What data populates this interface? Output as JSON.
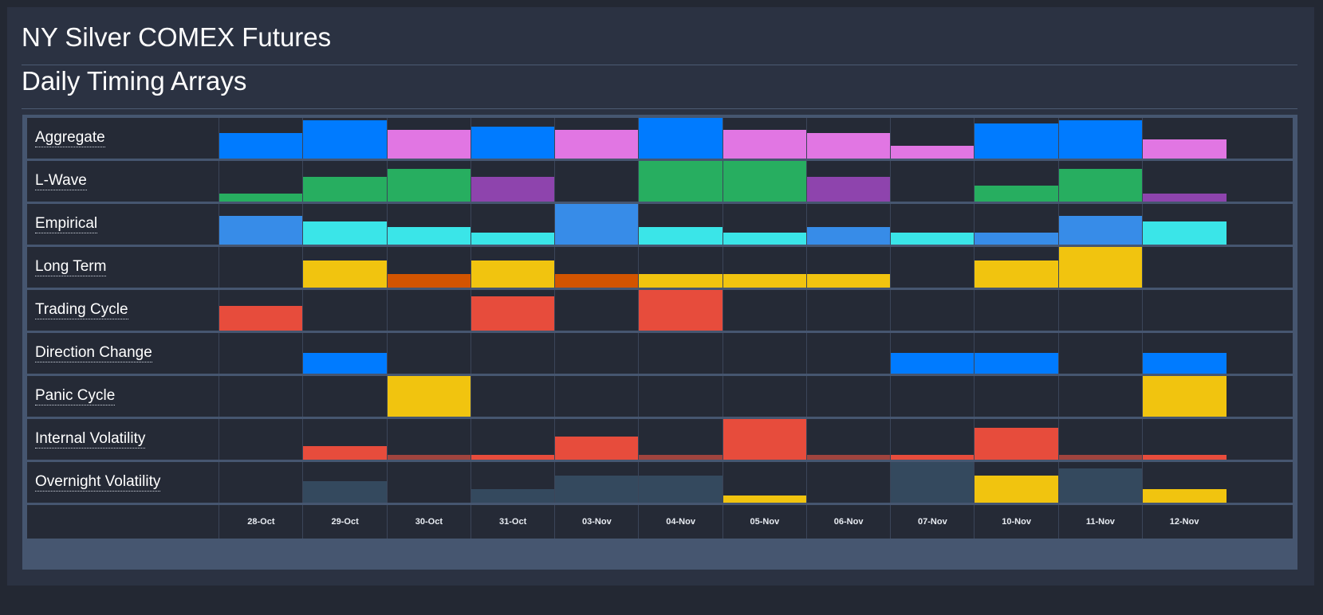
{
  "title": "NY Silver COMEX Futures",
  "subtitle": "Daily Timing Arrays",
  "chart_data": {
    "type": "heatmap",
    "value_scale": "relative bar height, 0 to 1",
    "categories": [
      "28-Oct",
      "29-Oct",
      "30-Oct",
      "31-Oct",
      "03-Nov",
      "04-Nov",
      "05-Nov",
      "06-Nov",
      "07-Nov",
      "10-Nov",
      "11-Nov",
      "12-Nov"
    ],
    "colors": {
      "blue": "#007bff",
      "pink": "#e176e3",
      "green": "#27ae60",
      "purple": "#8e44ad",
      "sky": "#378ce8",
      "cyan": "#3ae5e8",
      "yellow": "#f1c40f",
      "orange": "#d35400",
      "red": "#e74c3c",
      "darkred": "#a0443e",
      "slate": "#34495e"
    },
    "series": [
      {
        "name": "Aggregate",
        "values": [
          0.62,
          0.94,
          0.7,
          0.78,
          0.7,
          1.0,
          0.7,
          0.62,
          0.31,
          0.86,
          0.94,
          0.47
        ],
        "colors": [
          "blue",
          "blue",
          "pink",
          "blue",
          "pink",
          "blue",
          "pink",
          "pink",
          "pink",
          "blue",
          "blue",
          "pink"
        ]
      },
      {
        "name": "L-Wave",
        "values": [
          0.2,
          0.6,
          0.8,
          0.6,
          0,
          1.0,
          1.0,
          0.6,
          0,
          0.4,
          0.8,
          0.2
        ],
        "colors": [
          "green",
          "green",
          "green",
          "purple",
          "green",
          "green",
          "green",
          "purple",
          "green",
          "green",
          "green",
          "purple"
        ]
      },
      {
        "name": "Empirical",
        "values": [
          0.71,
          0.57,
          0.43,
          0.29,
          1.0,
          0.43,
          0.29,
          0.43,
          0.29,
          0.29,
          0.71,
          0.57
        ],
        "colors": [
          "sky",
          "cyan",
          "cyan",
          "cyan",
          "sky",
          "cyan",
          "cyan",
          "sky",
          "cyan",
          "sky",
          "sky",
          "cyan"
        ]
      },
      {
        "name": "Long Term",
        "values": [
          0,
          0.67,
          0.33,
          0.67,
          0.33,
          0.33,
          0.33,
          0.33,
          0,
          0.67,
          1.0,
          0
        ],
        "colors": [
          "yellow",
          "yellow",
          "orange",
          "yellow",
          "orange",
          "yellow",
          "yellow",
          "yellow",
          "yellow",
          "yellow",
          "yellow",
          "yellow"
        ]
      },
      {
        "name": "Trading Cycle",
        "values": [
          0.6,
          0,
          0,
          0.84,
          0,
          1.0,
          0,
          0,
          0,
          0,
          0,
          0
        ],
        "colors": [
          "red",
          "red",
          "red",
          "red",
          "red",
          "red",
          "red",
          "red",
          "red",
          "red",
          "red",
          "red"
        ]
      },
      {
        "name": "Direction Change",
        "values": [
          0,
          0.5,
          0,
          0,
          0,
          0,
          0,
          0,
          0.5,
          0.5,
          0,
          0.5
        ],
        "colors": [
          "blue",
          "blue",
          "blue",
          "blue",
          "blue",
          "blue",
          "blue",
          "blue",
          "blue",
          "blue",
          "blue",
          "blue"
        ]
      },
      {
        "name": "Panic Cycle",
        "values": [
          0,
          0,
          1.0,
          0,
          0,
          0,
          0,
          0,
          0,
          0,
          0,
          1.0
        ],
        "colors": [
          "yellow",
          "yellow",
          "yellow",
          "yellow",
          "yellow",
          "yellow",
          "yellow",
          "yellow",
          "yellow",
          "yellow",
          "yellow",
          "yellow"
        ]
      },
      {
        "name": "Internal Volatility",
        "values": [
          0,
          0.33,
          0.11,
          0.11,
          0.56,
          0.11,
          1.0,
          0.11,
          0.11,
          0.78,
          0.11,
          0.11
        ],
        "colors": [
          "red",
          "red",
          "darkred",
          "red",
          "red",
          "darkred",
          "red",
          "darkred",
          "red",
          "red",
          "darkred",
          "red"
        ]
      },
      {
        "name": "Overnight Volatility",
        "values": [
          0,
          0.52,
          0,
          0.33,
          0.67,
          0.67,
          0.17,
          0,
          1.0,
          0.67,
          0.84,
          0.33
        ],
        "colors": [
          "slate",
          "slate",
          "slate",
          "slate",
          "slate",
          "slate",
          "yellow",
          "slate",
          "slate",
          "yellow",
          "slate",
          "yellow"
        ]
      }
    ]
  }
}
